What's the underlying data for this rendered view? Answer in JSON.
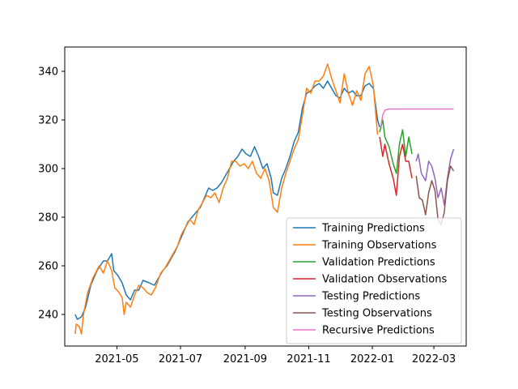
{
  "chart_data": {
    "type": "line",
    "title": "",
    "xlabel": "",
    "ylabel": "",
    "xlim": [
      "2021-03-12",
      "2022-04-01"
    ],
    "ylim": [
      227,
      350
    ],
    "grid": false,
    "legend_position": "lower-right",
    "x_ticks": [
      {
        "date": "2021-05-01",
        "label": "2021-05"
      },
      {
        "date": "2021-07-01",
        "label": "2021-07"
      },
      {
        "date": "2021-09-01",
        "label": "2021-09"
      },
      {
        "date": "2021-11-01",
        "label": "2021-11"
      },
      {
        "date": "2022-01-01",
        "label": "2022-01"
      },
      {
        "date": "2022-03-01",
        "label": "2022-03"
      }
    ],
    "y_ticks": [
      240,
      260,
      280,
      300,
      320,
      340
    ],
    "series": [
      {
        "name": "Training Predictions",
        "color": "#1f77b4",
        "points": [
          [
            "2021-03-22",
            240
          ],
          [
            "2021-03-24",
            238
          ],
          [
            "2021-03-28",
            239
          ],
          [
            "2021-04-01",
            243
          ],
          [
            "2021-04-06",
            252
          ],
          [
            "2021-04-12",
            258
          ],
          [
            "2021-04-18",
            262
          ],
          [
            "2021-04-22",
            262
          ],
          [
            "2021-04-26",
            265
          ],
          [
            "2021-04-28",
            258
          ],
          [
            "2021-05-02",
            256
          ],
          [
            "2021-05-06",
            253
          ],
          [
            "2021-05-10",
            248
          ],
          [
            "2021-05-14",
            246
          ],
          [
            "2021-05-18",
            250
          ],
          [
            "2021-05-22",
            250
          ],
          [
            "2021-05-26",
            254
          ],
          [
            "2021-06-01",
            253
          ],
          [
            "2021-06-06",
            252
          ],
          [
            "2021-06-10",
            255
          ],
          [
            "2021-06-14",
            258
          ],
          [
            "2021-06-18",
            260
          ],
          [
            "2021-06-22",
            263
          ],
          [
            "2021-06-26",
            266
          ],
          [
            "2021-06-30",
            270
          ],
          [
            "2021-07-04",
            274
          ],
          [
            "2021-07-08",
            278
          ],
          [
            "2021-07-12",
            280
          ],
          [
            "2021-07-16",
            282
          ],
          [
            "2021-07-20",
            284
          ],
          [
            "2021-07-24",
            288
          ],
          [
            "2021-07-28",
            292
          ],
          [
            "2021-08-01",
            291
          ],
          [
            "2021-08-05",
            292
          ],
          [
            "2021-08-09",
            294
          ],
          [
            "2021-08-13",
            297
          ],
          [
            "2021-08-17",
            300
          ],
          [
            "2021-08-21",
            303
          ],
          [
            "2021-08-25",
            305
          ],
          [
            "2021-08-29",
            308
          ],
          [
            "2021-09-02",
            306
          ],
          [
            "2021-09-06",
            305
          ],
          [
            "2021-09-10",
            309
          ],
          [
            "2021-09-14",
            305
          ],
          [
            "2021-09-18",
            300
          ],
          [
            "2021-09-22",
            302
          ],
          [
            "2021-09-26",
            296
          ],
          [
            "2021-09-28",
            290
          ],
          [
            "2021-10-02",
            289
          ],
          [
            "2021-10-06",
            296
          ],
          [
            "2021-10-10",
            300
          ],
          [
            "2021-10-14",
            305
          ],
          [
            "2021-10-18",
            311
          ],
          [
            "2021-10-22",
            315
          ],
          [
            "2021-10-26",
            325
          ],
          [
            "2021-10-30",
            331
          ],
          [
            "2021-11-03",
            332
          ],
          [
            "2021-11-07",
            334
          ],
          [
            "2021-11-11",
            335
          ],
          [
            "2021-11-15",
            333
          ],
          [
            "2021-11-19",
            336
          ],
          [
            "2021-11-23",
            333
          ],
          [
            "2021-11-27",
            330
          ],
          [
            "2021-12-01",
            329
          ],
          [
            "2021-12-05",
            333
          ],
          [
            "2021-12-09",
            331
          ],
          [
            "2021-12-13",
            332
          ],
          [
            "2021-12-17",
            330
          ],
          [
            "2021-12-21",
            330
          ],
          [
            "2021-12-25",
            334
          ],
          [
            "2021-12-29",
            335
          ],
          [
            "2022-01-02",
            333
          ],
          [
            "2022-01-06",
            320
          ],
          [
            "2022-01-08",
            317
          ]
        ]
      },
      {
        "name": "Training Observations",
        "color": "#ff7f0e",
        "points": [
          [
            "2021-03-22",
            232
          ],
          [
            "2021-03-23",
            236
          ],
          [
            "2021-03-26",
            235
          ],
          [
            "2021-03-28",
            232
          ],
          [
            "2021-03-30",
            240
          ],
          [
            "2021-04-03",
            249
          ],
          [
            "2021-04-08",
            255
          ],
          [
            "2021-04-14",
            260
          ],
          [
            "2021-04-18",
            257
          ],
          [
            "2021-04-22",
            262
          ],
          [
            "2021-04-26",
            258
          ],
          [
            "2021-04-29",
            251
          ],
          [
            "2021-05-03",
            249
          ],
          [
            "2021-05-06",
            247
          ],
          [
            "2021-05-08",
            240
          ],
          [
            "2021-05-10",
            245
          ],
          [
            "2021-05-14",
            243
          ],
          [
            "2021-05-18",
            248
          ],
          [
            "2021-05-22",
            252
          ],
          [
            "2021-05-26",
            251
          ],
          [
            "2021-05-30",
            249
          ],
          [
            "2021-06-03",
            248
          ],
          [
            "2021-06-07",
            251
          ],
          [
            "2021-06-12",
            257
          ],
          [
            "2021-06-16",
            259
          ],
          [
            "2021-06-20",
            262
          ],
          [
            "2021-06-24",
            265
          ],
          [
            "2021-06-28",
            268
          ],
          [
            "2021-07-02",
            273
          ],
          [
            "2021-07-06",
            276
          ],
          [
            "2021-07-10",
            279
          ],
          [
            "2021-07-14",
            277
          ],
          [
            "2021-07-18",
            283
          ],
          [
            "2021-07-22",
            286
          ],
          [
            "2021-07-26",
            289
          ],
          [
            "2021-07-30",
            288
          ],
          [
            "2021-08-03",
            290
          ],
          [
            "2021-08-07",
            286
          ],
          [
            "2021-08-11",
            292
          ],
          [
            "2021-08-15",
            296
          ],
          [
            "2021-08-19",
            303
          ],
          [
            "2021-08-23",
            303
          ],
          [
            "2021-08-27",
            301
          ],
          [
            "2021-08-31",
            302
          ],
          [
            "2021-09-04",
            300
          ],
          [
            "2021-09-08",
            303
          ],
          [
            "2021-09-12",
            298
          ],
          [
            "2021-09-16",
            296
          ],
          [
            "2021-09-20",
            300
          ],
          [
            "2021-09-24",
            295
          ],
          [
            "2021-09-28",
            284
          ],
          [
            "2021-10-02",
            282
          ],
          [
            "2021-10-06",
            292
          ],
          [
            "2021-10-10",
            298
          ],
          [
            "2021-10-14",
            303
          ],
          [
            "2021-10-18",
            308
          ],
          [
            "2021-10-22",
            312
          ],
          [
            "2021-10-26",
            322
          ],
          [
            "2021-10-30",
            333
          ],
          [
            "2021-11-03",
            331
          ],
          [
            "2021-11-07",
            336
          ],
          [
            "2021-11-11",
            336
          ],
          [
            "2021-11-15",
            338
          ],
          [
            "2021-11-19",
            343
          ],
          [
            "2021-11-23",
            337
          ],
          [
            "2021-11-27",
            332
          ],
          [
            "2021-12-01",
            327
          ],
          [
            "2021-12-05",
            339
          ],
          [
            "2021-12-09",
            331
          ],
          [
            "2021-12-13",
            326
          ],
          [
            "2021-12-17",
            332
          ],
          [
            "2021-12-21",
            328
          ],
          [
            "2021-12-25",
            339
          ],
          [
            "2021-12-29",
            342
          ],
          [
            "2022-01-02",
            334
          ],
          [
            "2022-01-06",
            314
          ]
        ]
      },
      {
        "name": "Validation Predictions",
        "color": "#2ca02c",
        "points": [
          [
            "2022-01-08",
            315
          ],
          [
            "2022-01-11",
            320
          ],
          [
            "2022-01-13",
            313
          ],
          [
            "2022-01-17",
            309
          ],
          [
            "2022-01-21",
            302
          ],
          [
            "2022-01-24",
            298
          ],
          [
            "2022-01-27",
            310
          ],
          [
            "2022-01-30",
            316
          ],
          [
            "2022-02-02",
            305
          ],
          [
            "2022-02-05",
            313
          ],
          [
            "2022-02-08",
            306
          ]
        ]
      },
      {
        "name": "Validation Observations",
        "color": "#d62728",
        "points": [
          [
            "2022-01-08",
            313
          ],
          [
            "2022-01-11",
            305
          ],
          [
            "2022-01-13",
            310
          ],
          [
            "2022-01-17",
            302
          ],
          [
            "2022-01-21",
            296
          ],
          [
            "2022-01-24",
            289
          ],
          [
            "2022-01-27",
            305
          ],
          [
            "2022-01-30",
            310
          ],
          [
            "2022-02-02",
            303
          ],
          [
            "2022-02-05",
            303
          ],
          [
            "2022-02-08",
            296
          ]
        ]
      },
      {
        "name": "Testing Predictions",
        "color": "#9467bd",
        "points": [
          [
            "2022-02-12",
            303
          ],
          [
            "2022-02-14",
            306
          ],
          [
            "2022-02-17",
            298
          ],
          [
            "2022-02-21",
            295
          ],
          [
            "2022-02-24",
            303
          ],
          [
            "2022-02-27",
            301
          ],
          [
            "2022-03-02",
            296
          ],
          [
            "2022-03-05",
            288
          ],
          [
            "2022-03-08",
            292
          ],
          [
            "2022-03-11",
            285
          ],
          [
            "2022-03-14",
            296
          ],
          [
            "2022-03-17",
            304
          ],
          [
            "2022-03-20",
            308
          ]
        ]
      },
      {
        "name": "Testing Observations",
        "color": "#8c564b",
        "points": [
          [
            "2022-02-12",
            297
          ],
          [
            "2022-02-15",
            288
          ],
          [
            "2022-02-18",
            287
          ],
          [
            "2022-02-21",
            281
          ],
          [
            "2022-02-24",
            290
          ],
          [
            "2022-02-27",
            295
          ],
          [
            "2022-03-02",
            291
          ],
          [
            "2022-03-05",
            279
          ],
          [
            "2022-03-08",
            277
          ],
          [
            "2022-03-11",
            282
          ],
          [
            "2022-03-14",
            295
          ],
          [
            "2022-03-17",
            301
          ],
          [
            "2022-03-20",
            299
          ]
        ]
      },
      {
        "name": "Recursive Predictions",
        "color": "#e377c2",
        "points": [
          [
            "2022-01-09",
            317
          ],
          [
            "2022-01-11",
            322
          ],
          [
            "2022-01-13",
            324
          ],
          [
            "2022-01-17",
            324.5
          ],
          [
            "2022-02-01",
            324.5
          ],
          [
            "2022-03-01",
            324.5
          ],
          [
            "2022-03-20",
            324.5
          ]
        ]
      }
    ]
  }
}
